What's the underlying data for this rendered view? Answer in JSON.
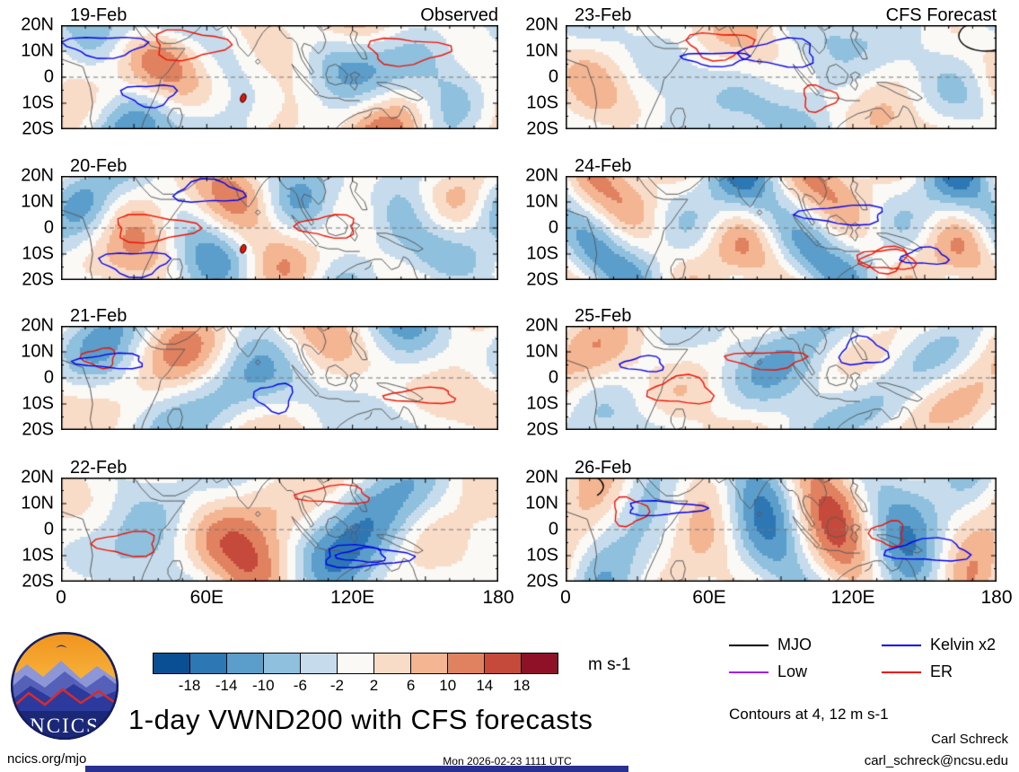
{
  "chart_data": {
    "type": "heatmap",
    "title": "1-day VWND200 with CFS forecasts",
    "variable": "VWND200 anomaly",
    "units": "m s-1",
    "panels": [
      {
        "date": "19-Feb",
        "header_right": "Observed"
      },
      {
        "date": "20-Feb",
        "header_right": ""
      },
      {
        "date": "21-Feb",
        "header_right": ""
      },
      {
        "date": "22-Feb",
        "header_right": ""
      },
      {
        "date": "23-Feb",
        "header_right": "CFS Forecast"
      },
      {
        "date": "24-Feb",
        "header_right": ""
      },
      {
        "date": "25-Feb",
        "header_right": ""
      },
      {
        "date": "26-Feb",
        "header_right": ""
      }
    ],
    "ytick_labels": [
      "20N",
      "10N",
      "0",
      "10S",
      "20S"
    ],
    "xtick_labels": [
      "0",
      "60E",
      "120E",
      "180"
    ],
    "lat_range": [
      -20,
      20
    ],
    "lon_range": [
      0,
      180
    ],
    "colorbar": {
      "tick_labels": [
        "-18",
        "-14",
        "-10",
        "-6",
        "-2",
        "2",
        "6",
        "10",
        "14",
        "18"
      ],
      "thresholds": [
        -18,
        -14,
        -10,
        -6,
        -2,
        2,
        6,
        10,
        14,
        18
      ],
      "colors": [
        "#0a4f94",
        "#2e77b5",
        "#5b9dcb",
        "#8fc0dd",
        "#c6dcec",
        "#faf9f6",
        "#f9dcc8",
        "#f3b592",
        "#e08160",
        "#c64a3b",
        "#8f1127"
      ]
    },
    "legend": [
      {
        "label": "MJO",
        "color": "#000000"
      },
      {
        "label": "Kelvin x2",
        "color": "#0000ee"
      },
      {
        "label": "Low",
        "color": "#a020f0"
      },
      {
        "label": "ER",
        "color": "#ee1100"
      }
    ],
    "contour_note": "Contours at 4, 12 m s-1"
  },
  "footer": {
    "site": "ncics.org/mjo",
    "timestamp": "Mon 2026-02-23 1111 UTC",
    "author": "Carl Schreck",
    "email": "carl_schreck@ncsu.edu",
    "logo_text": "NCICS"
  }
}
